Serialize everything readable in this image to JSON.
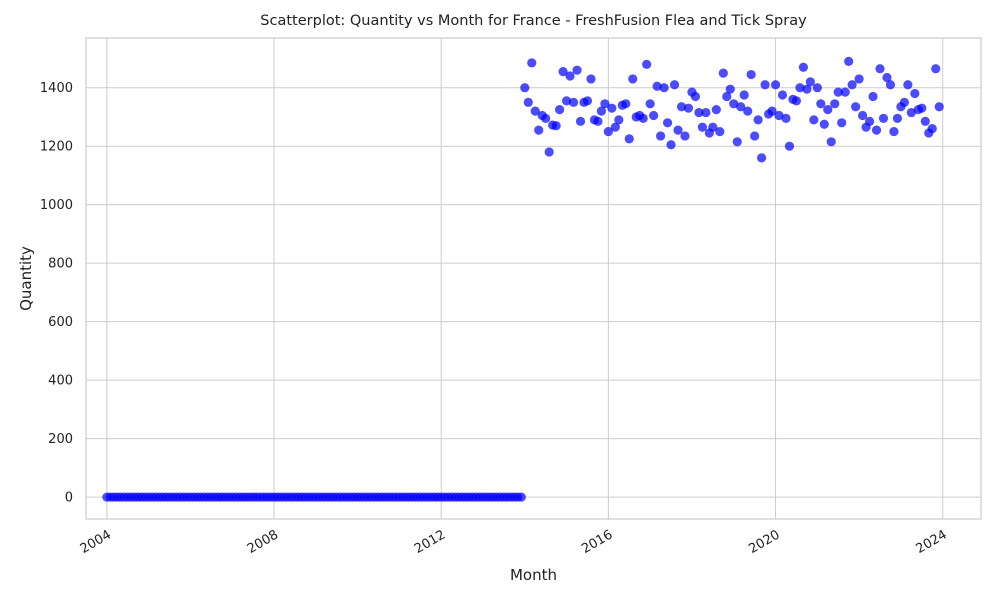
{
  "chart_data": {
    "type": "scatter",
    "title": "Scatterplot: Quantity vs Month for France - FreshFusion Flea and Tick Spray",
    "xlabel": "Month",
    "ylabel": "Quantity",
    "x_ticks": [
      "2004",
      "2008",
      "2012",
      "2016",
      "2020",
      "2024"
    ],
    "y_ticks": [
      "0",
      "200",
      "400",
      "600",
      "800",
      "1000",
      "1200",
      "1400"
    ],
    "xlim": [
      "2003-07-01",
      "2024-12-01"
    ],
    "ylim": [
      -75,
      1570
    ],
    "grid": true,
    "marker_color": "#0000ff",
    "marker_opacity": 0.7,
    "x_tick_rotation_deg": 30,
    "series": [
      {
        "x_start": "2004-01",
        "x_step": "1 month",
        "y": [
          0,
          0,
          0,
          0,
          0,
          0,
          0,
          0,
          0,
          0,
          0,
          0,
          0,
          0,
          0,
          0,
          0,
          0,
          0,
          0,
          0,
          0,
          0,
          0,
          0,
          0,
          0,
          0,
          0,
          0,
          0,
          0,
          0,
          0,
          0,
          0,
          0,
          0,
          0,
          0,
          0,
          0,
          0,
          0,
          0,
          0,
          0,
          0,
          0,
          0,
          0,
          0,
          0,
          0,
          0,
          0,
          0,
          0,
          0,
          0,
          0,
          0,
          0,
          0,
          0,
          0,
          0,
          0,
          0,
          0,
          0,
          0,
          0,
          0,
          0,
          0,
          0,
          0,
          0,
          0,
          0,
          0,
          0,
          0,
          0,
          0,
          0,
          0,
          0,
          0,
          0,
          0,
          0,
          0,
          0,
          0,
          0,
          0,
          0,
          0,
          0,
          0,
          0,
          0,
          0,
          0,
          0,
          0,
          0,
          0,
          0,
          0,
          0,
          0,
          0,
          0,
          0,
          0,
          0,
          0,
          1400,
          1350,
          1485,
          1320,
          1255,
          1305,
          1295,
          1180,
          1272,
          1270,
          1325,
          1455,
          1355,
          1440,
          1350,
          1460,
          1285,
          1350,
          1355,
          1430,
          1290,
          1285,
          1320,
          1345,
          1250,
          1330,
          1265,
          1290,
          1340,
          1345,
          1225,
          1430,
          1300,
          1305,
          1295,
          1480,
          1345,
          1305,
          1405,
          1235,
          1400,
          1280,
          1205,
          1410,
          1255,
          1335,
          1235,
          1330,
          1385,
          1370,
          1315,
          1265,
          1315,
          1245,
          1265,
          1325,
          1250,
          1450,
          1370,
          1395,
          1345,
          1215,
          1335,
          1375,
          1320,
          1445,
          1235,
          1290,
          1160,
          1410,
          1310,
          1320,
          1410,
          1305,
          1375,
          1295,
          1200,
          1360,
          1355,
          1400,
          1470,
          1395,
          1420,
          1290,
          1400,
          1345,
          1275,
          1325,
          1215,
          1345,
          1385,
          1280,
          1385,
          1490,
          1410,
          1335,
          1430,
          1305,
          1265,
          1285,
          1370,
          1255,
          1465,
          1295,
          1435,
          1410,
          1250,
          1295,
          1335,
          1350,
          1410,
          1315,
          1380,
          1325,
          1330,
          1285,
          1245,
          1260,
          1465,
          1335
        ]
      }
    ]
  }
}
